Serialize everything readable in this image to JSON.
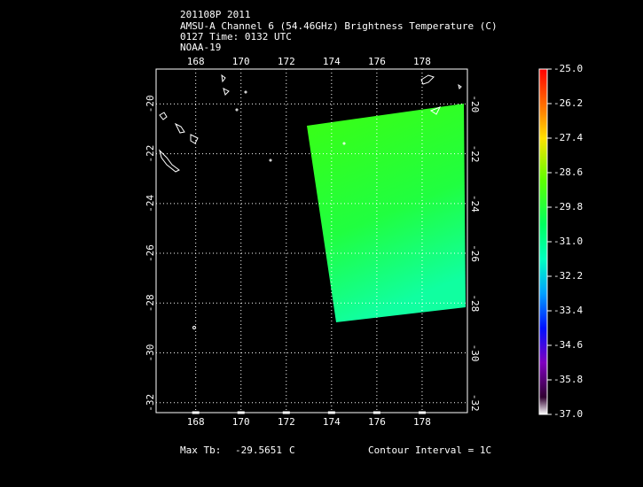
{
  "header": {
    "lines": [
      "201108P 2011",
      "AMSU-A Channel 6 (54.46GHz) Brightness Temperature (C)",
      "0127 Time: 0132 UTC",
      "NOAA-19"
    ]
  },
  "map": {
    "xlim": [
      166.25,
      180
    ],
    "ylim": [
      -18.6,
      -32.4
    ],
    "lon_ticks": [
      168,
      170,
      172,
      174,
      176,
      178
    ],
    "lat_ticks": [
      -20,
      -22,
      -24,
      -26,
      -28,
      -30,
      -32
    ]
  },
  "colorbar": {
    "clim": [
      -37,
      -25
    ],
    "ticks": [
      {
        "value": -25,
        "label": "-25.0"
      },
      {
        "value": -26.2,
        "label": "-26.2"
      },
      {
        "value": -27.4,
        "label": "-27.4"
      },
      {
        "value": -28.6,
        "label": "-28.6"
      },
      {
        "value": -29.8,
        "label": "-29.8"
      },
      {
        "value": -31,
        "label": "-31.0"
      },
      {
        "value": -32.2,
        "label": "-32.2"
      },
      {
        "value": -33.4,
        "label": "-33.4"
      },
      {
        "value": -34.6,
        "label": "-34.6"
      },
      {
        "value": -35.8,
        "label": "-35.8"
      },
      {
        "value": -37,
        "label": "-37.0"
      }
    ]
  },
  "footer": {
    "max_tb_label": "Max Tb:",
    "max_tb_value": "-29.5651",
    "max_tb_unit": "C",
    "contour_interval": "Contour Interval = 1C"
  }
}
